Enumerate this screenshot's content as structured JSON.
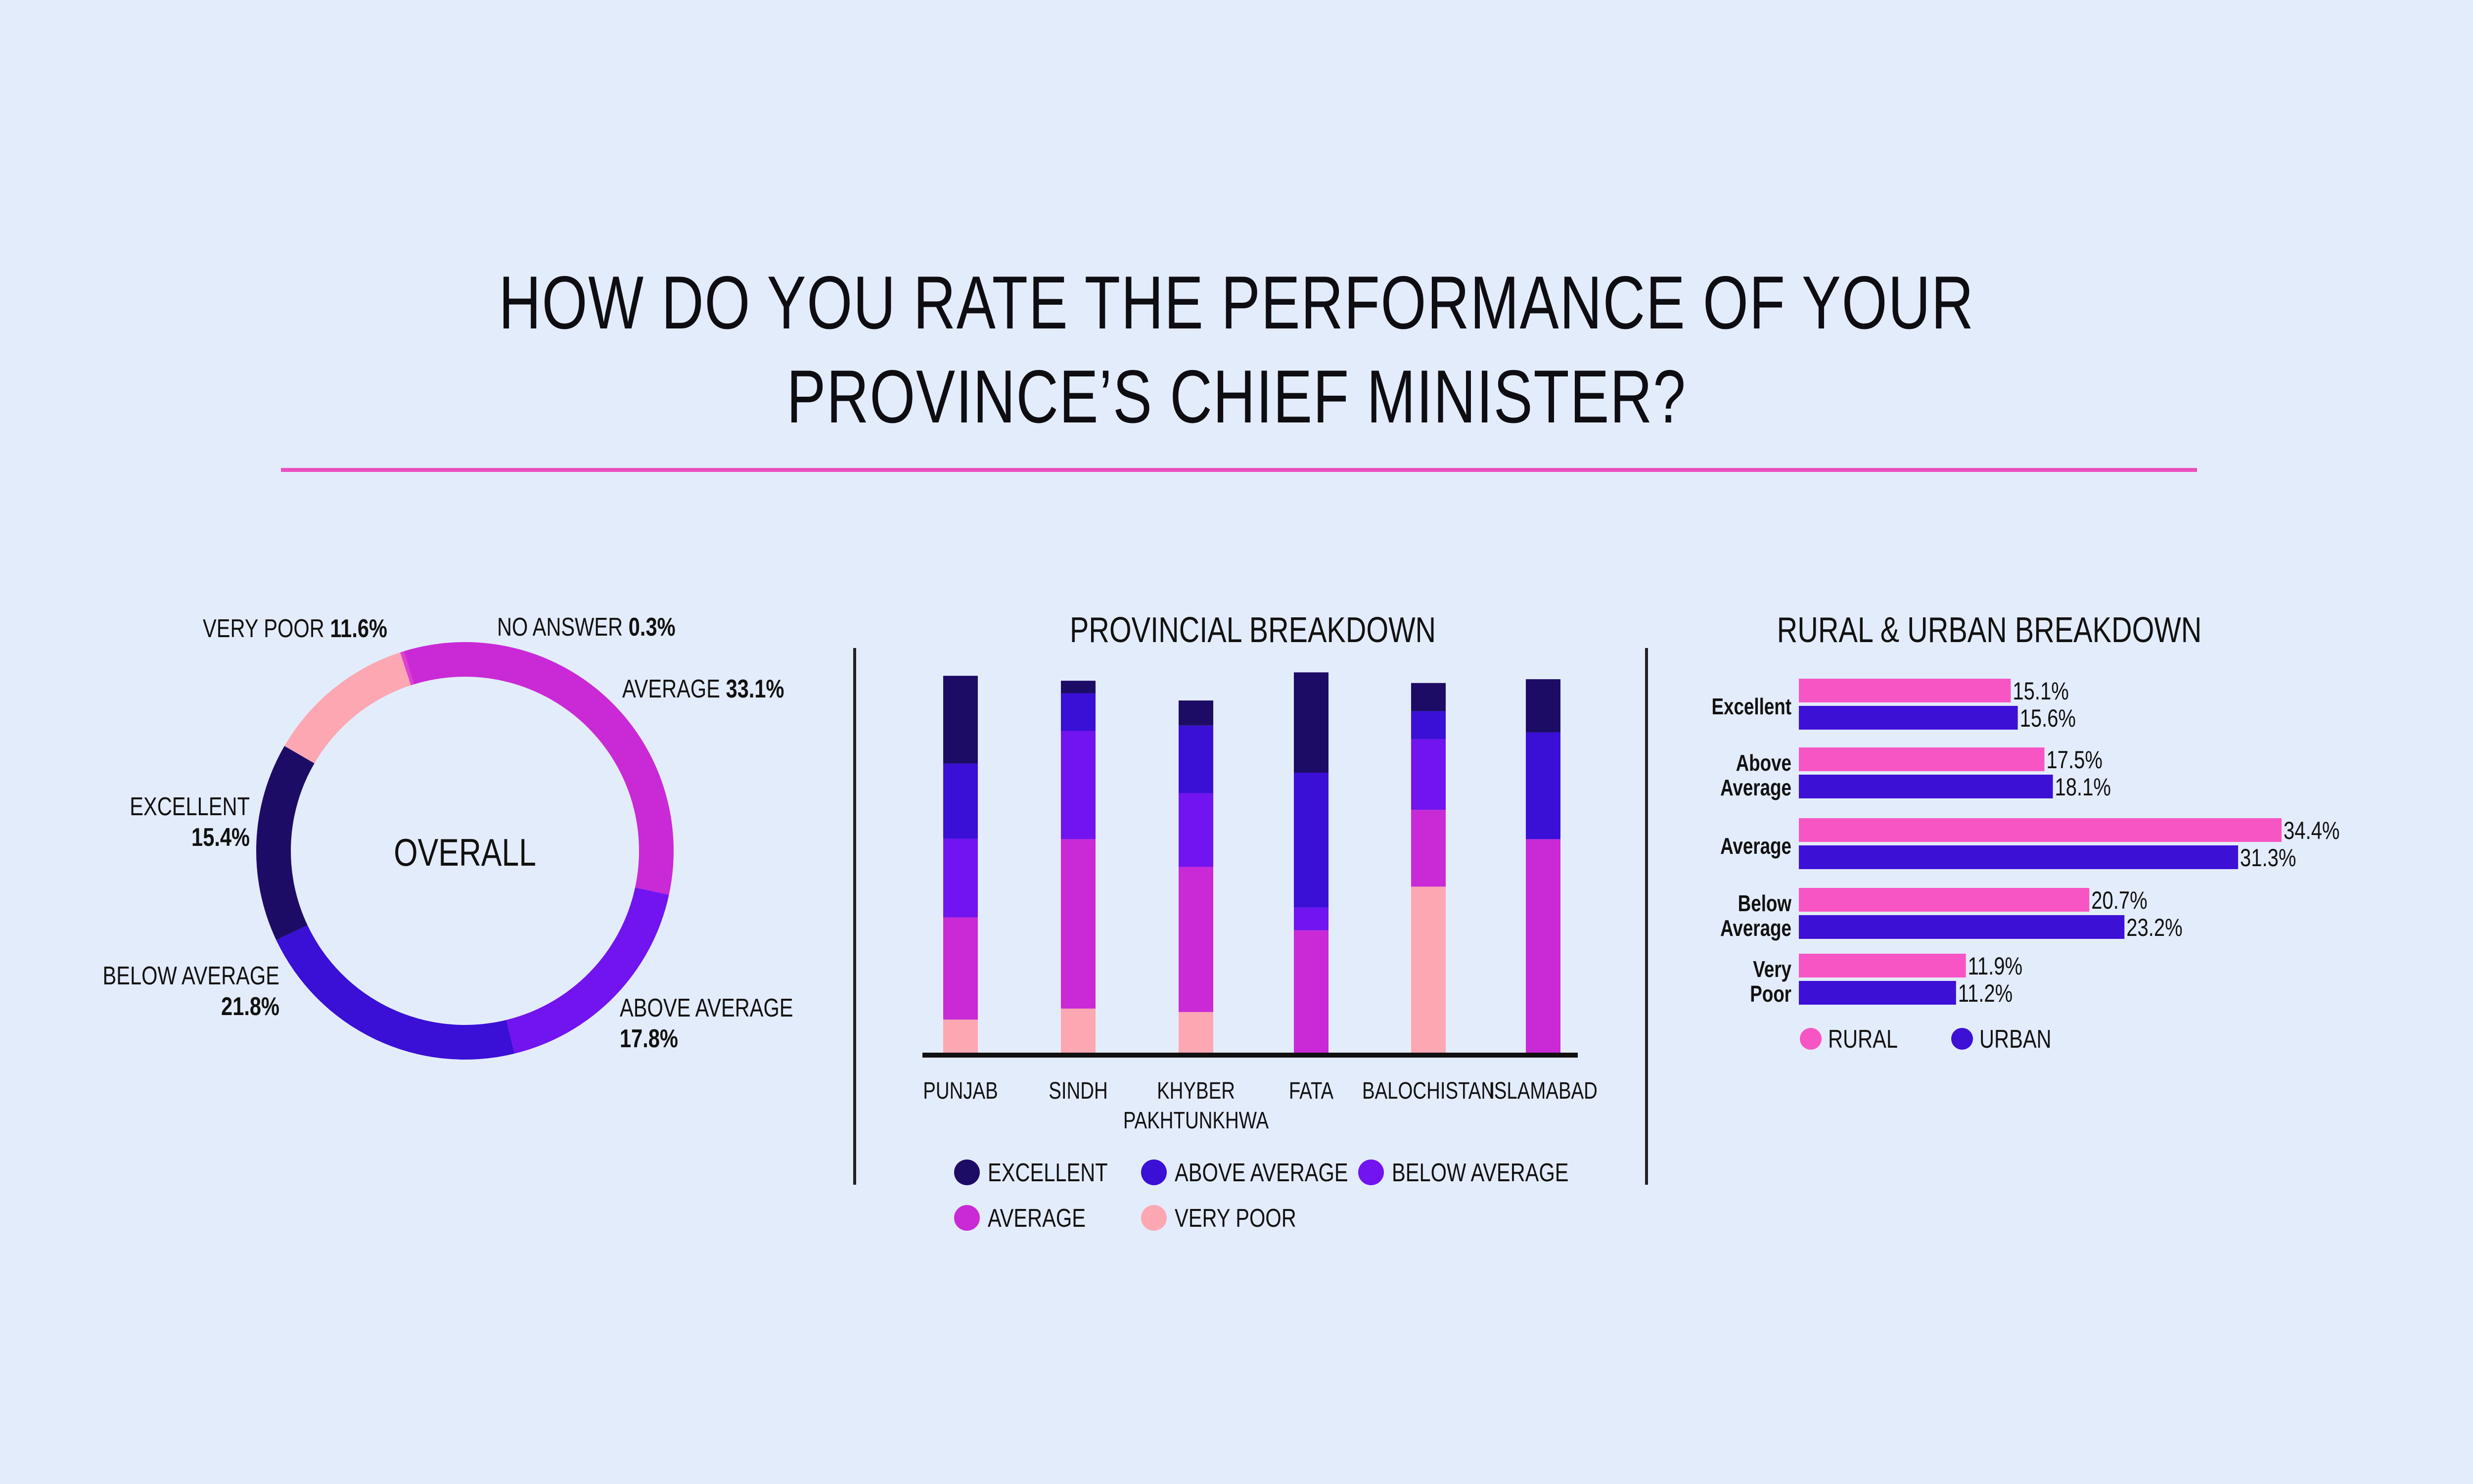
{
  "title": {
    "line1": "HOW DO YOU RATE THE PERFORMANCE OF YOUR",
    "line2": "PROVINCE’S CHIEF MINISTER?"
  },
  "colors": {
    "excellent": "#1d0c66",
    "above_average": "#3a0fd6",
    "below_average": "#7214ef",
    "average": "#c92ad6",
    "very_poor": "#fca7b2",
    "no_answer": "#e03fcf",
    "rural": "#f755c4",
    "urban": "#3d10d6",
    "background": "#e3ecfb",
    "accent_rule": "#ea4fbf"
  },
  "chart_data": [
    {
      "type": "pie",
      "variant": "donut",
      "center_label": "OVERALL",
      "slices": [
        {
          "label": "AVERAGE",
          "value": 33.1,
          "value_label": "33.1%",
          "color_key": "average"
        },
        {
          "label": "ABOVE AVERAGE",
          "value": 17.8,
          "value_label": "17.8%",
          "color_key": "below_average"
        },
        {
          "label": "BELOW AVERAGE",
          "value": 21.8,
          "value_label": "21.8%",
          "color_key": "above_average"
        },
        {
          "label": "EXCELLENT",
          "value": 15.4,
          "value_label": "15.4%",
          "color_key": "excellent"
        },
        {
          "label": "VERY POOR",
          "value": 11.6,
          "value_label": "11.6%",
          "color_key": "very_poor"
        },
        {
          "label": "NO ANSWER",
          "value": 0.3,
          "value_label": "0.3%",
          "color_key": "no_answer"
        }
      ]
    },
    {
      "type": "bar",
      "stacked": true,
      "title": "PROVINCIAL BREAKDOWN",
      "categories": [
        "PUNJAB",
        "SINDH",
        "KHYBER PAKHTUNKHWA",
        "FATA",
        "BALOCHISTAN",
        "ISLAMABAD"
      ],
      "category_lines": [
        [
          "PUNJAB"
        ],
        [
          "SINDH"
        ],
        [
          "KHYBER",
          "PAKHTUNKHWA"
        ],
        [
          "FATA"
        ],
        [
          "BALOCHISTAN"
        ],
        [
          "ISLAMABAD"
        ]
      ],
      "series": [
        {
          "name": "VERY POOR",
          "color_key": "very_poor",
          "values": [
            8.7,
            11.6,
            10.7,
            0,
            43.7,
            0
          ]
        },
        {
          "name": "AVERAGE",
          "color_key": "average",
          "values": [
            26.9,
            44.6,
            38.2,
            32.2,
            20.2,
            56.2
          ]
        },
        {
          "name": "BELOW AVERAGE",
          "color_key": "below_average",
          "values": [
            20.7,
            28.5,
            19.4,
            6.0,
            18.6,
            0
          ]
        },
        {
          "name": "ABOVE AVERAGE",
          "color_key": "above_average",
          "values": [
            19.8,
            9.9,
            17.8,
            35.5,
            7.4,
            28.1
          ]
        },
        {
          "name": "EXCELLENT",
          "color_key": "excellent",
          "values": [
            23.1,
            3.3,
            6.6,
            26.4,
            7.4,
            14.0
          ]
        }
      ],
      "legend": [
        {
          "label": "EXCELLENT",
          "color_key": "excellent"
        },
        {
          "label": "ABOVE AVERAGE",
          "color_key": "above_average"
        },
        {
          "label": "BELOW AVERAGE",
          "color_key": "below_average"
        },
        {
          "label": "AVERAGE",
          "color_key": "average"
        },
        {
          "label": "VERY POOR",
          "color_key": "very_poor"
        }
      ],
      "ylim": [
        0,
        100
      ]
    },
    {
      "type": "bar",
      "orientation": "horizontal",
      "title": "RURAL & URBAN BREAKDOWN",
      "categories": [
        "Excellent",
        "Above Average",
        "Average",
        "Below Average",
        "Very Poor"
      ],
      "category_lines": [
        [
          "Excellent"
        ],
        [
          "Above",
          "Average"
        ],
        [
          "Average"
        ],
        [
          "Below",
          "Average"
        ],
        [
          "Very",
          "Poor"
        ]
      ],
      "series": [
        {
          "name": "RURAL",
          "color_key": "rural",
          "values": [
            15.1,
            17.5,
            34.4,
            20.7,
            11.9
          ],
          "value_labels": [
            "15.1%",
            "17.5%",
            "34.4%",
            "20.7%",
            "11.9%"
          ]
        },
        {
          "name": "URBAN",
          "color_key": "urban",
          "values": [
            15.6,
            18.1,
            31.3,
            23.2,
            11.2
          ],
          "value_labels": [
            "15.6%",
            "18.1%",
            "31.3%",
            "23.2%",
            "11.2%"
          ]
        }
      ],
      "xlim": [
        0,
        35
      ]
    }
  ]
}
